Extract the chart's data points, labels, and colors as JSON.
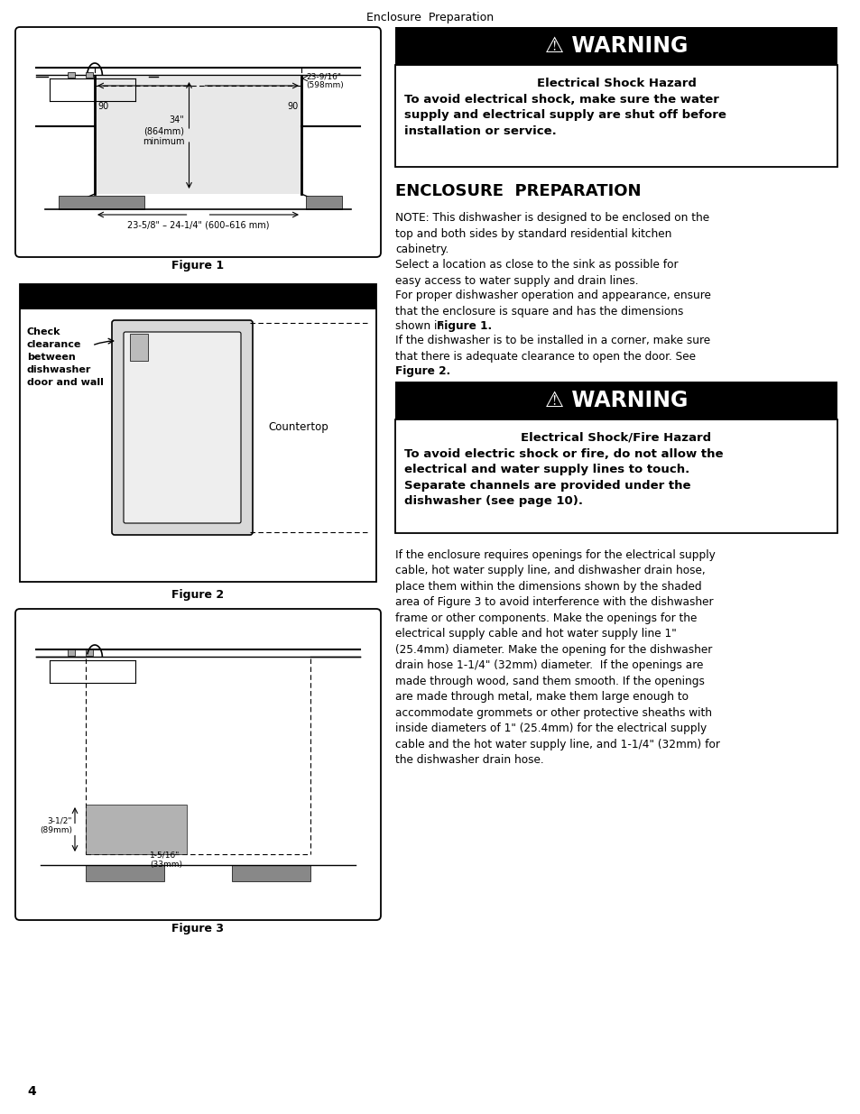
{
  "page_title": "Enclosure  Preparation",
  "page_number": "4",
  "bg_color": "#ffffff",
  "warning1_header": "⚠ WARNING",
  "warning1_subheader": "Electrical Shock Hazard",
  "warning1_body": "To avoid electrical shock, make sure the water\nsupply and electrical supply are shut off before\ninstallation or service.",
  "section_title": "ENCLOSURE  PREPARATION",
  "para1": "NOTE: This dishwasher is designed to be enclosed on the\ntop and both sides by standard residential kitchen\ncabinetry.",
  "para2": "Select a location as close to the sink as possible for\neasy access to water supply and drain lines.",
  "para3a": "For proper dishwasher operation and appearance, ensure\nthat the enclosure is square and has the dimensions\nshown in ",
  "para3b": "Figure 1",
  "para3c": ".",
  "para4a": "If the dishwasher is to be installed in a corner, make sure\nthat there is adequate clearance to open the door. See",
  "para4b": "Figure 2",
  "para4c": ".",
  "warning2_header": "⚠ WARNING",
  "warning2_subheader": "Electrical Shock/Fire Hazard",
  "warning2_body": "To avoid electric shock or fire, do not allow the\nelectrical and water supply lines to touch.\nSeparate channels are provided under the\ndishwasher (see page 10).",
  "para5": "If the enclosure requires openings for the electrical supply\ncable, hot water supply line, and dishwasher drain hose,\nplace them within the dimensions shown by the shaded\narea of Figure 3 to avoid interference with the dishwasher\nframe or other components. Make the openings for the\nelectrical supply cable and hot water supply line 1\"\n(25.4mm) diameter. Make the opening for the dishwasher\ndrain hose 1-1/4\" (32mm) diameter.  If the openings are\nmade through wood, sand them smooth. If the openings\nare made through metal, make them large enough to\naccommodate grommets or other protective sheaths with\ninside diameters of 1\" (25.4mm) for the electrical supply\ncable and the hot water supply line, and 1-1/4\" (32mm) for\nthe dishwasher drain hose.",
  "fig1_caption": "Figure 1",
  "fig2_caption": "Figure 2",
  "fig3_caption": "Figure 3",
  "fig1_label_dim": "23-9/16\"\n(598mm)",
  "fig1_label_90l": "90",
  "fig1_label_90r": "90",
  "fig1_label_height": "34\"\n(864mm)\nminimum",
  "fig1_label_width": "23-5/8\" – 24-1/4\" (600–616 mm)",
  "fig2_label_check": "Check\nclearance\nbetween\ndishwasher\ndoor and wall",
  "fig2_label_counter": "Countertop",
  "fig3_label_a": "3-1/2\"\n(89mm)",
  "fig3_label_b": "1-5/16\"\n(33mm)"
}
